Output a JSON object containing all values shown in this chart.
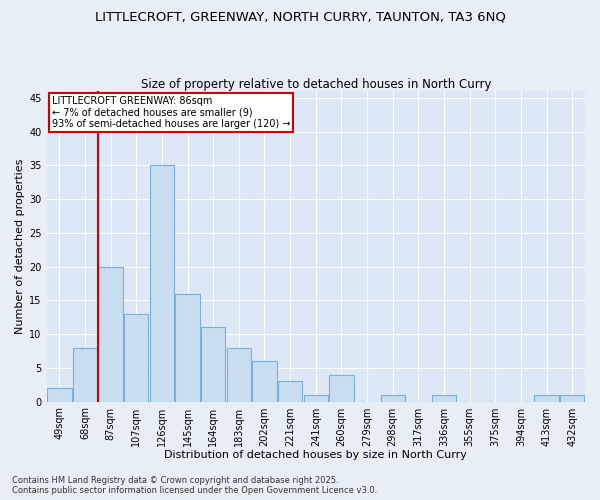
{
  "title_line1": "LITTLECROFT, GREENWAY, NORTH CURRY, TAUNTON, TA3 6NQ",
  "title_line2": "Size of property relative to detached houses in North Curry",
  "xlabel": "Distribution of detached houses by size in North Curry",
  "ylabel": "Number of detached properties",
  "categories": [
    "49sqm",
    "68sqm",
    "87sqm",
    "107sqm",
    "126sqm",
    "145sqm",
    "164sqm",
    "183sqm",
    "202sqm",
    "221sqm",
    "241sqm",
    "260sqm",
    "279sqm",
    "298sqm",
    "317sqm",
    "336sqm",
    "355sqm",
    "375sqm",
    "394sqm",
    "413sqm",
    "432sqm"
  ],
  "values": [
    2,
    8,
    20,
    13,
    35,
    16,
    11,
    8,
    6,
    3,
    1,
    4,
    0,
    1,
    0,
    1,
    0,
    0,
    0,
    1,
    1
  ],
  "bar_color": "#c8ddf0",
  "bar_edge_color": "#7bafd4",
  "fig_background_color": "#e8eef5",
  "axes_background_color": "#dce8f5",
  "grid_color": "#ffffff",
  "vline_color": "#cc0000",
  "vline_x_index": 1.5,
  "annotation_title": "LITTLECROFT GREENWAY: 86sqm",
  "annotation_line1": "← 7% of detached houses are smaller (9)",
  "annotation_line2": "93% of semi-detached houses are larger (120) →",
  "annotation_box_edgecolor": "#cc0000",
  "annotation_box_facecolor": "#ffffff",
  "ylim": [
    0,
    46
  ],
  "yticks": [
    0,
    5,
    10,
    15,
    20,
    25,
    30,
    35,
    40,
    45
  ],
  "title_fontsize": 9.5,
  "subtitle_fontsize": 8.5,
  "axis_label_fontsize": 8,
  "tick_fontsize": 7,
  "annotation_fontsize": 7,
  "footer_fontsize": 6,
  "footer_line1": "Contains HM Land Registry data © Crown copyright and database right 2025.",
  "footer_line2": "Contains public sector information licensed under the Open Government Licence v3.0."
}
